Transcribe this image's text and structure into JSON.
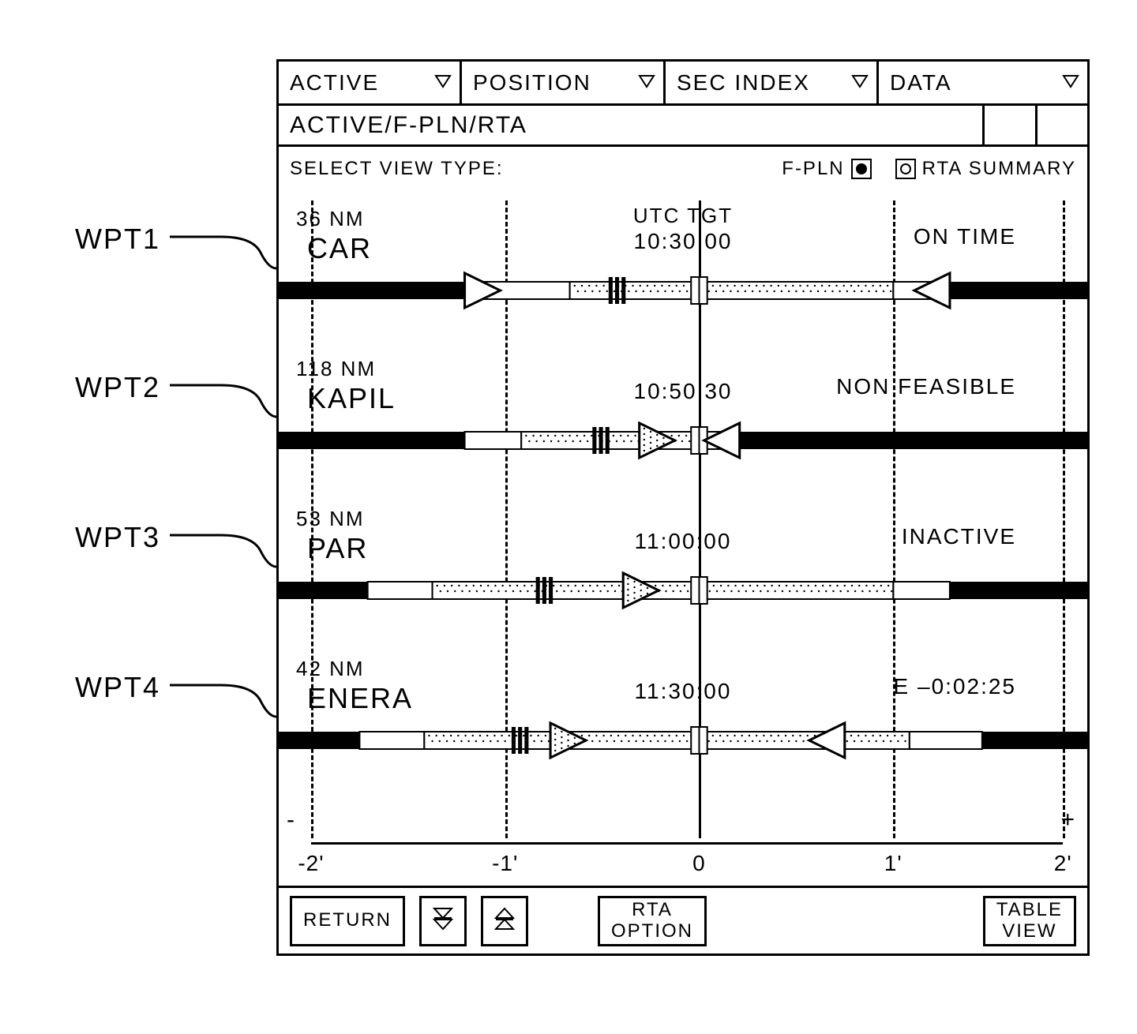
{
  "callouts": {
    "wpt1": "WPT1",
    "wpt2": "WPT2",
    "wpt3": "WPT3",
    "wpt4": "WPT4"
  },
  "tabs": {
    "active": "ACTIVE",
    "position": "POSITION",
    "secindex": "SEC INDEX",
    "data": "DATA"
  },
  "breadcrumb": "ACTIVE/F-PLN/RTA",
  "view_select": {
    "label": "SELECT VIEW TYPE:",
    "opt1": "F-PLN",
    "opt2": "RTA SUMMARY",
    "selected": "opt1"
  },
  "axis": {
    "ticks": [
      "-2'",
      "-1'",
      "0",
      "1'",
      "2'"
    ],
    "tick_positions_pct": [
      4,
      28,
      52,
      76,
      97
    ],
    "minus": "-",
    "plus": "+"
  },
  "header_center": "UTC TGT",
  "waypoints": [
    {
      "dist": "36 NM",
      "name": "CAR",
      "time": "10:30:00",
      "status": "ON TIME",
      "bar": {
        "solid_left_end_pct": 23,
        "solid_right_start_pct": 83,
        "white_left_start_pct": 23,
        "white_left_end_pct": 36,
        "dotted_start_pct": 36,
        "dotted_end_pct": 76,
        "white_right_start_pct": 76,
        "white_right_end_pct": 83,
        "left_caret_pct": 23,
        "right_caret_pct": 83,
        "black_marker_pct": 42,
        "center_marker_pct": 52,
        "show_dotted_left_caret": false,
        "dotted_left_caret_pct": 0
      }
    },
    {
      "dist": "118 NM",
      "name": "KAPIL",
      "time": "10:50:30",
      "status": "NON FEASIBLE",
      "bar": {
        "solid_left_end_pct": 23,
        "solid_right_start_pct": 57,
        "white_left_start_pct": 23,
        "white_left_end_pct": 30,
        "dotted_start_pct": 30,
        "dotted_end_pct": 52,
        "white_right_start_pct": 52,
        "white_right_end_pct": 57,
        "left_caret_pct": -10,
        "right_caret_pct": 57,
        "black_marker_pct": 40,
        "center_marker_pct": 52,
        "show_dotted_left_caret": true,
        "dotted_left_caret_pct": 49
      }
    },
    {
      "dist": "53 NM",
      "name": "PAR",
      "time": "11:00:00",
      "status": "INACTIVE",
      "bar": {
        "solid_left_end_pct": 11,
        "solid_right_start_pct": 83,
        "white_left_start_pct": 11,
        "white_left_end_pct": 19,
        "dotted_start_pct": 19,
        "dotted_end_pct": 76,
        "white_right_start_pct": 76,
        "white_right_end_pct": 83,
        "left_caret_pct": -10,
        "right_caret_pct": -10,
        "black_marker_pct": 33,
        "center_marker_pct": 52,
        "show_dotted_left_caret": true,
        "dotted_left_caret_pct": 47
      }
    },
    {
      "dist": "42 NM",
      "name": "ENERA",
      "time": "11:30:00",
      "status": "E –0:02:25",
      "bar": {
        "solid_left_end_pct": 10,
        "solid_right_start_pct": 87,
        "white_left_start_pct": 10,
        "white_left_end_pct": 18,
        "dotted_start_pct": 18,
        "dotted_end_pct": 78,
        "white_right_start_pct": 78,
        "white_right_end_pct": 87,
        "left_caret_pct": -10,
        "right_caret_pct": 70,
        "black_marker_pct": 30,
        "center_marker_pct": 52,
        "show_dotted_left_caret": true,
        "dotted_left_caret_pct": 38
      }
    }
  ],
  "footer": {
    "return": "RETURN",
    "rta_option": "RTA\nOPTION",
    "table_view": "TABLE\nVIEW"
  },
  "colors": {
    "stroke": "#000000",
    "bg": "#ffffff",
    "bar_solid": "#000000",
    "bar_white": "#ffffff"
  }
}
